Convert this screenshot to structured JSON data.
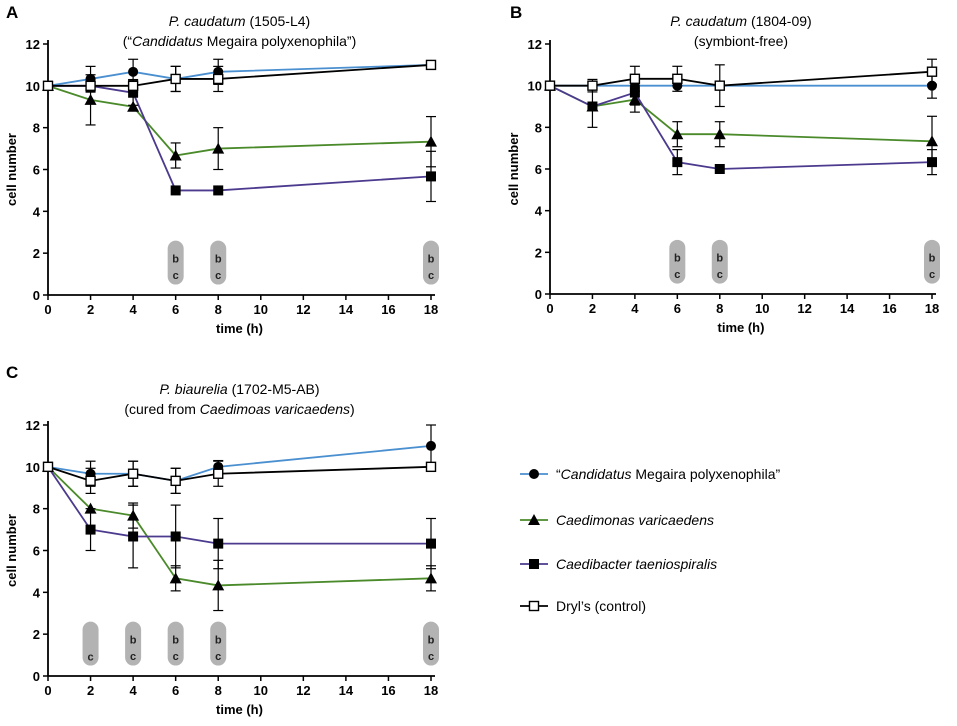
{
  "legend": [
    {
      "series": "cmp",
      "parts": [
        {
          "t": "“"
        },
        {
          "t": "Candidatus",
          "i": true
        },
        {
          "t": " Megaira polyxenophila”"
        }
      ]
    },
    {
      "series": "cvar",
      "parts": [
        {
          "t": "Caedimonas varicaedens",
          "i": true
        }
      ]
    },
    {
      "series": "ctae",
      "parts": [
        {
          "t": "Caedibacter taeniospiralis",
          "i": true
        }
      ]
    },
    {
      "series": "dryl",
      "parts": [
        {
          "t": "Dryl’s (control)"
        }
      ]
    }
  ],
  "styles": {
    "cmp": {
      "color": "#4a8fd0",
      "marker": "circle"
    },
    "cvar": {
      "color": "#4a8a2a",
      "marker": "triangle"
    },
    "ctae": {
      "color": "#4c3a8e",
      "marker": "square"
    },
    "dryl": {
      "color": "#000000",
      "marker": "open-square"
    }
  },
  "chart_data": [
    {
      "panel": "A",
      "type": "line",
      "title_lines": [
        [
          {
            "t": "P. caudatum",
            "i": true
          },
          {
            "t": " (1505-L4)"
          }
        ],
        [
          {
            "t": "(“"
          },
          {
            "t": "Candidatus",
            "i": true
          },
          {
            "t": " Megaira polyxenophila”)"
          }
        ]
      ],
      "xlabel": "time (h)",
      "ylabel": "cell number",
      "xlim": [
        0,
        18
      ],
      "ylim": [
        0,
        12
      ],
      "xticks": [
        0,
        2,
        4,
        6,
        8,
        10,
        12,
        14,
        16,
        18
      ],
      "yticks": [
        0,
        2,
        4,
        6,
        8,
        10,
        12
      ],
      "series": [
        {
          "key": "cmp",
          "x": [
            0,
            2,
            4,
            6,
            8,
            18
          ],
          "y": [
            10,
            10.33,
            10.67,
            10.33,
            10.67,
            11
          ],
          "err": [
            0,
            0.6,
            0.6,
            0.6,
            0.6,
            0.2
          ]
        },
        {
          "key": "cvar",
          "x": [
            0,
            2,
            4,
            6,
            8,
            18
          ],
          "y": [
            10,
            9.33,
            9,
            6.67,
            7,
            7.33
          ],
          "err": [
            0,
            1.2,
            0,
            0.6,
            1.0,
            1.2
          ]
        },
        {
          "key": "ctae",
          "x": [
            0,
            2,
            4,
            6,
            8,
            18
          ],
          "y": [
            10,
            10,
            9.67,
            5,
            5,
            5.67
          ],
          "err": [
            0,
            0,
            0.6,
            0,
            0,
            1.2
          ]
        },
        {
          "key": "dryl",
          "x": [
            0,
            2,
            4,
            6,
            8,
            18
          ],
          "y": [
            10,
            10,
            10,
            10.33,
            10.33,
            11
          ],
          "err": [
            0,
            0.3,
            0.3,
            0.6,
            0.6,
            0.2
          ]
        }
      ],
      "annotations": [
        {
          "x": 6,
          "lines": [
            "b",
            "c"
          ]
        },
        {
          "x": 8,
          "lines": [
            "b",
            "c"
          ]
        },
        {
          "x": 18,
          "lines": [
            "b",
            "c"
          ]
        }
      ]
    },
    {
      "panel": "B",
      "type": "line",
      "title_lines": [
        [
          {
            "t": "P. caudatum",
            "i": true
          },
          {
            "t": " (1804-09)"
          }
        ],
        [
          {
            "t": "(symbiont-free)"
          }
        ]
      ],
      "xlabel": "time (h)",
      "ylabel": "cell number",
      "xlim": [
        0,
        18
      ],
      "ylim": [
        0,
        12
      ],
      "xticks": [
        0,
        2,
        4,
        6,
        8,
        10,
        12,
        14,
        16,
        18
      ],
      "yticks": [
        0,
        2,
        4,
        6,
        8,
        10,
        12
      ],
      "series": [
        {
          "key": "cmp",
          "x": [
            0,
            2,
            4,
            6,
            8,
            18
          ],
          "y": [
            10,
            10,
            10,
            10,
            10,
            10
          ],
          "err": [
            0,
            0,
            0,
            0,
            0,
            0.6
          ]
        },
        {
          "key": "cvar",
          "x": [
            0,
            2,
            4,
            6,
            8,
            18
          ],
          "y": [
            10,
            9,
            9.33,
            7.67,
            7.67,
            7.33
          ],
          "err": [
            0,
            1.0,
            0.6,
            0.6,
            0.6,
            1.2
          ]
        },
        {
          "key": "ctae",
          "x": [
            0,
            2,
            4,
            6,
            8,
            18
          ],
          "y": [
            10,
            9,
            9.67,
            6.33,
            6,
            6.33
          ],
          "err": [
            0,
            0,
            0.6,
            0.6,
            0,
            0.6
          ]
        },
        {
          "key": "dryl",
          "x": [
            0,
            2,
            4,
            6,
            8,
            18
          ],
          "y": [
            10,
            10,
            10.33,
            10.33,
            10,
            10.67
          ],
          "err": [
            0,
            0.3,
            0.6,
            0.6,
            1.0,
            0.6
          ]
        }
      ],
      "annotations": [
        {
          "x": 6,
          "lines": [
            "b",
            "c"
          ]
        },
        {
          "x": 8,
          "lines": [
            "b",
            "c"
          ]
        },
        {
          "x": 18,
          "lines": [
            "b",
            "c"
          ]
        }
      ]
    },
    {
      "panel": "C",
      "type": "line",
      "title_lines": [
        [
          {
            "t": "P. biaurelia",
            "i": true
          },
          {
            "t": " (1702-M5-AB)"
          }
        ],
        [
          {
            "t": "(cured from "
          },
          {
            "t": "Caedimoas varicaedens",
            "i": true
          },
          {
            "t": ")"
          }
        ]
      ],
      "xlabel": "time (h)",
      "ylabel": "cell number",
      "xlim": [
        0,
        18
      ],
      "ylim": [
        0,
        12
      ],
      "xticks": [
        0,
        2,
        4,
        6,
        8,
        10,
        12,
        14,
        16,
        18
      ],
      "yticks": [
        0,
        2,
        4,
        6,
        8,
        10,
        12
      ],
      "series": [
        {
          "key": "cmp",
          "x": [
            0,
            2,
            4,
            6,
            8,
            18
          ],
          "y": [
            10,
            9.67,
            9.67,
            9.33,
            10,
            11
          ],
          "err": [
            0,
            0.6,
            0.6,
            0.6,
            0.3,
            1.0
          ]
        },
        {
          "key": "cvar",
          "x": [
            0,
            2,
            4,
            6,
            8,
            18
          ],
          "y": [
            10,
            8,
            7.67,
            4.67,
            4.33,
            4.67
          ],
          "err": [
            0,
            0,
            0.6,
            0.6,
            1.2,
            0.6
          ]
        },
        {
          "key": "ctae",
          "x": [
            0,
            2,
            4,
            6,
            8,
            18
          ],
          "y": [
            10,
            7,
            6.67,
            6.67,
            6.33,
            6.33
          ],
          "err": [
            0,
            1.0,
            1.5,
            1.5,
            1.2,
            1.2
          ]
        },
        {
          "key": "dryl",
          "x": [
            0,
            2,
            4,
            6,
            8,
            18
          ],
          "y": [
            10,
            9.33,
            9.67,
            9.33,
            9.67,
            10
          ],
          "err": [
            0,
            0.6,
            0.6,
            0.6,
            0.6,
            0
          ]
        }
      ],
      "annotations": [
        {
          "x": 2,
          "lines": [
            "c"
          ]
        },
        {
          "x": 4,
          "lines": [
            "b",
            "c"
          ]
        },
        {
          "x": 6,
          "lines": [
            "b",
            "c"
          ]
        },
        {
          "x": 8,
          "lines": [
            "b",
            "c"
          ]
        },
        {
          "x": 18,
          "lines": [
            "b",
            "c"
          ]
        }
      ]
    }
  ]
}
